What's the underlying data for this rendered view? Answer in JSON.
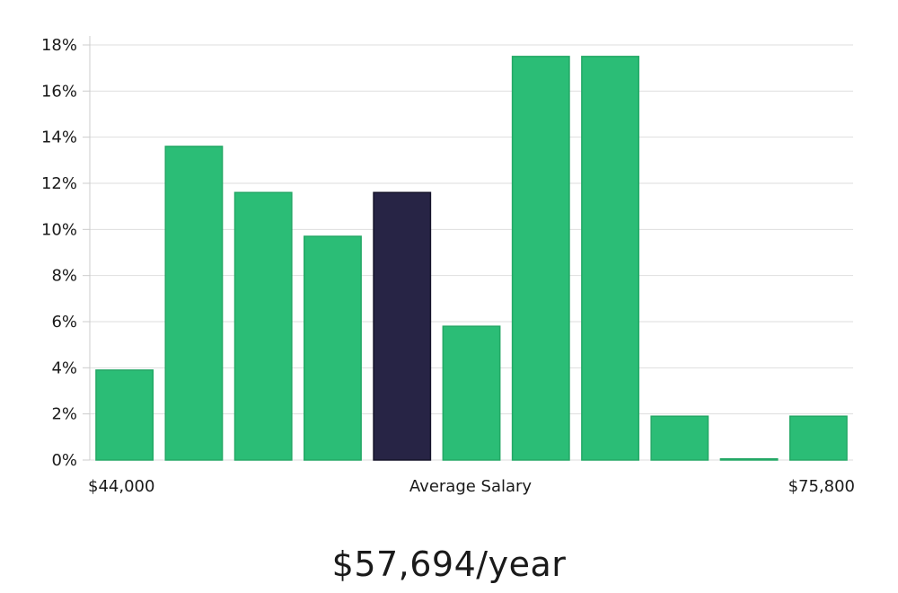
{
  "chart_data": {
    "type": "bar",
    "title": "",
    "xlabel": "Average Salary",
    "ylabel": "",
    "x_range_labels": {
      "min": "$44,000",
      "max": "$75,800"
    },
    "ylim": [
      0,
      18
    ],
    "yticks": [
      0,
      2,
      4,
      6,
      8,
      10,
      12,
      14,
      16,
      18
    ],
    "ytick_suffix": "%",
    "grid": true,
    "highlight_index": 4,
    "values": [
      3.9,
      13.6,
      11.6,
      9.7,
      11.6,
      5.8,
      17.5,
      17.5,
      1.9,
      0.05,
      1.9
    ],
    "colors": {
      "bar": "#2bbd76",
      "bar_stroke": "#24a866",
      "highlight": "#272445",
      "grid": "#dedede",
      "axis": "#cccccc"
    }
  },
  "summary": {
    "salary_text": "$57,694/year"
  }
}
